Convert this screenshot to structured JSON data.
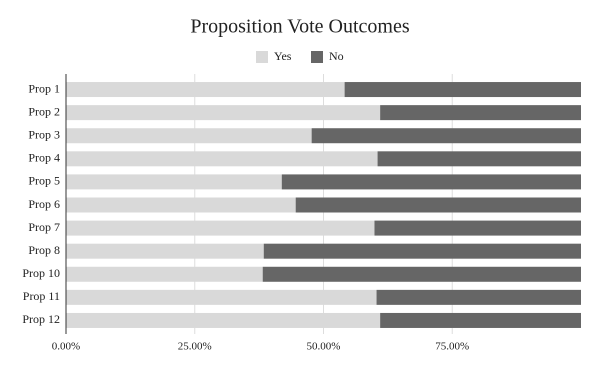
{
  "chart_data": {
    "type": "stacked_bar_horizontal",
    "title": "Proposition Vote Outcomes",
    "categories": [
      "Prop 1",
      "Prop 2",
      "Prop 3",
      "Prop 4",
      "Prop 5",
      "Prop 6",
      "Prop 7",
      "Prop 8",
      "Prop 10",
      "Prop 11",
      "Prop 12"
    ],
    "series": [
      {
        "name": "Yes",
        "color": "#d9d9d9",
        "values": [
          54.1,
          61.0,
          47.7,
          60.5,
          41.9,
          44.6,
          59.9,
          38.4,
          38.2,
          60.3,
          61.0
        ]
      },
      {
        "name": "No",
        "color": "#666666",
        "values": [
          45.9,
          39.0,
          52.3,
          39.5,
          58.1,
          55.4,
          40.1,
          61.6,
          61.8,
          39.7,
          39.0
        ]
      }
    ],
    "xlim": [
      0,
      100
    ],
    "xticks": [
      {
        "value": 0,
        "label": "0.00%"
      },
      {
        "value": 25,
        "label": "25.00%"
      },
      {
        "value": 50,
        "label": "50.00%"
      },
      {
        "value": 75,
        "label": "75.00%"
      }
    ],
    "grid": true,
    "legend": "top"
  }
}
